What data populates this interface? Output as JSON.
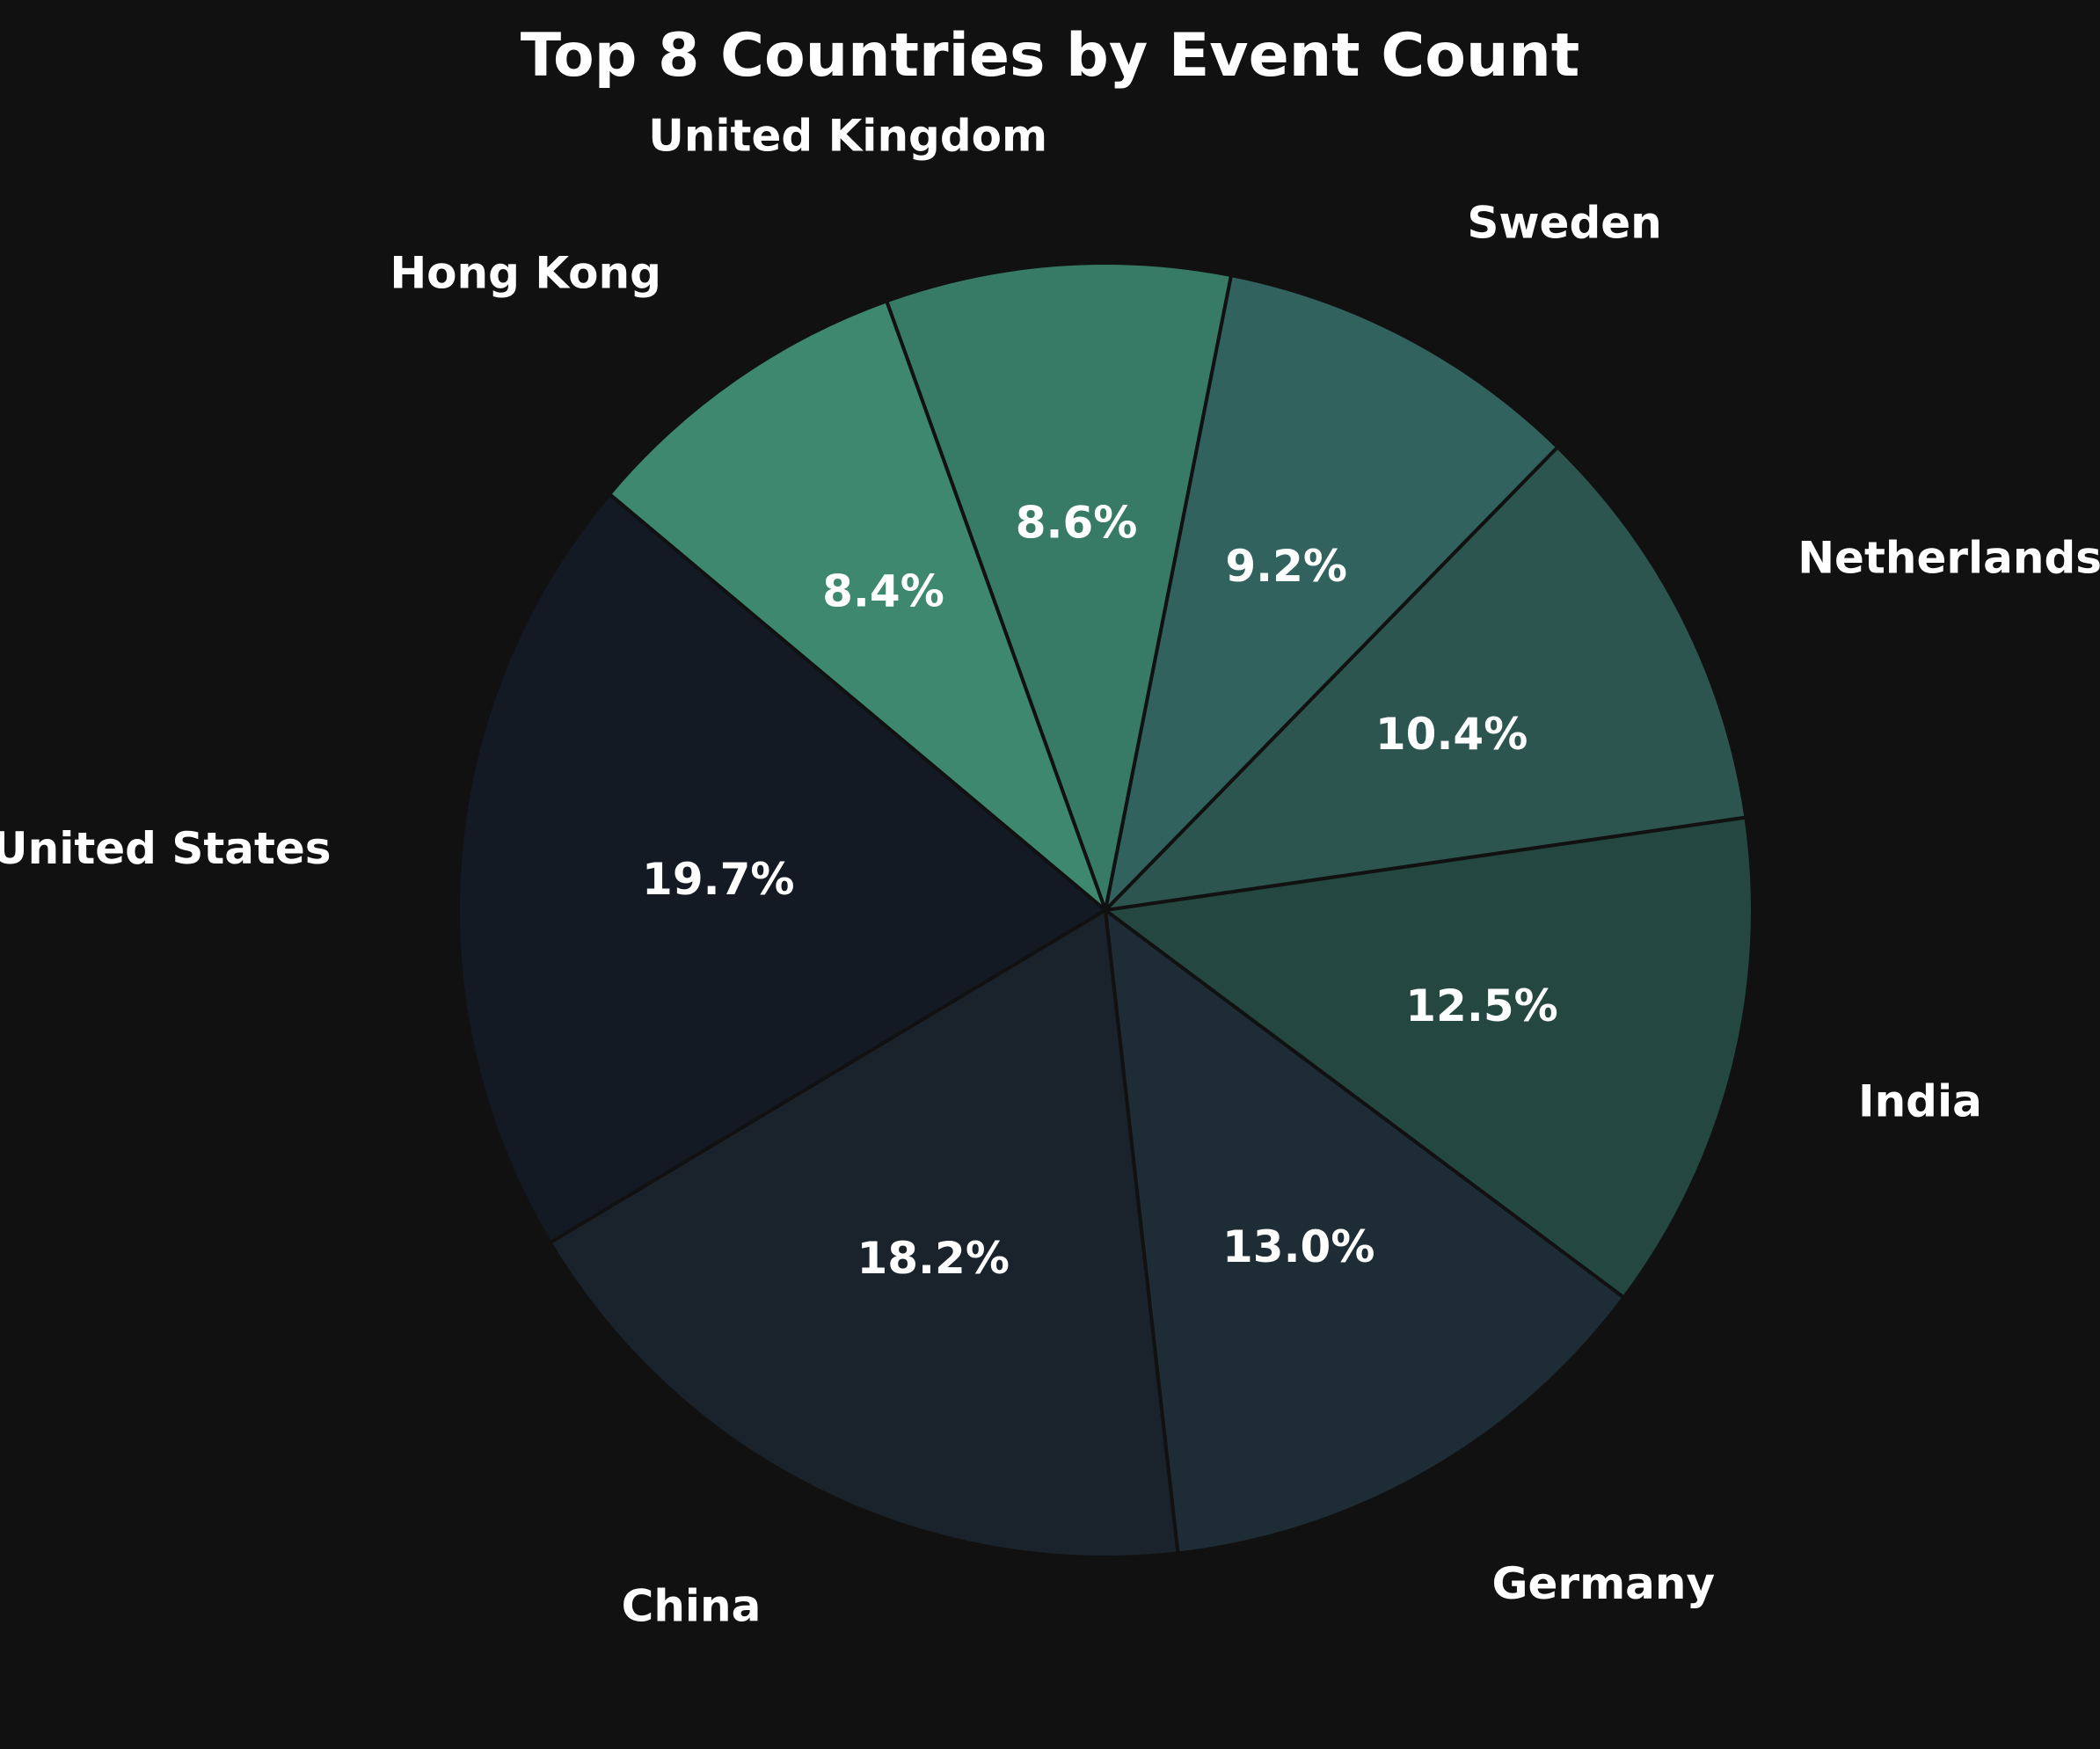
{
  "chart_data": {
    "type": "pie",
    "title": "Top 8 Countries by Event Count",
    "start_angle_deg": 140,
    "direction": "counterclockwise",
    "edge_color": "#111111",
    "background": "#111111",
    "slices": [
      {
        "label": "United States",
        "value": 19.7,
        "pct_label": "19.7%",
        "color": "#131a23"
      },
      {
        "label": "China",
        "value": 18.2,
        "pct_label": "18.2%",
        "color": "#1a232b"
      },
      {
        "label": "Germany",
        "value": 13.0,
        "pct_label": "13.0%",
        "color": "#1e2d35"
      },
      {
        "label": "India",
        "value": 12.5,
        "pct_label": "12.5%",
        "color": "#244740"
      },
      {
        "label": "Netherlands",
        "value": 10.4,
        "pct_label": "10.4%",
        "color": "#2d5550"
      },
      {
        "label": "Sweden",
        "value": 9.2,
        "pct_label": "9.2%",
        "color": "#31625e"
      },
      {
        "label": "United Kingdom",
        "value": 8.6,
        "pct_label": "8.6%",
        "color": "#377b67"
      },
      {
        "label": "Hong Kong",
        "value": 8.4,
        "pct_label": "8.4%",
        "color": "#3e8870"
      }
    ]
  }
}
